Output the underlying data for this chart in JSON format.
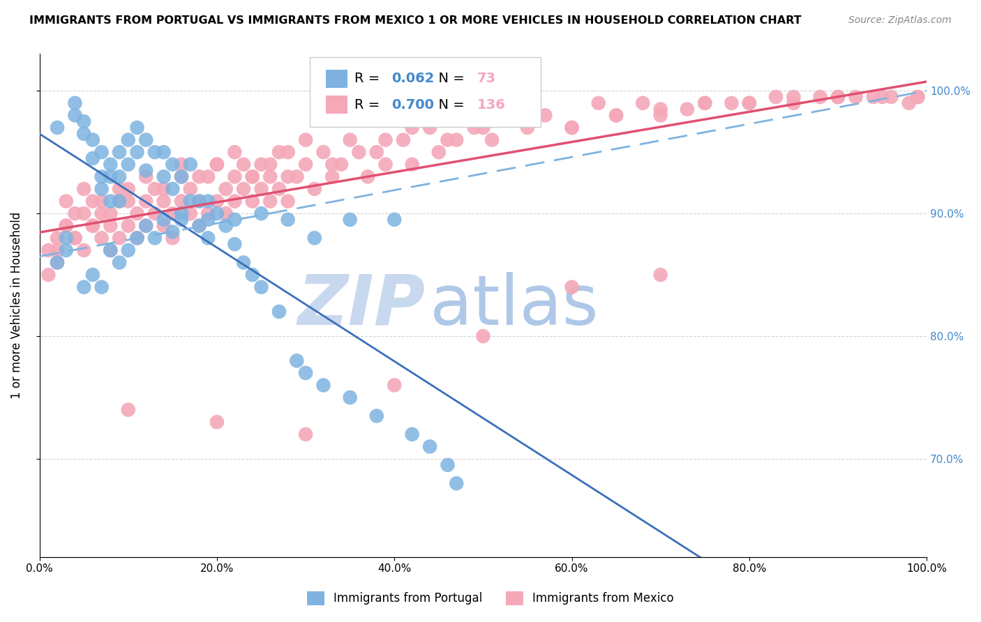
{
  "title": "IMMIGRANTS FROM PORTUGAL VS IMMIGRANTS FROM MEXICO 1 OR MORE VEHICLES IN HOUSEHOLD CORRELATION CHART",
  "source": "Source: ZipAtlas.com",
  "ylabel": "1 or more Vehicles in Household",
  "xlim": [
    0.0,
    1.0
  ],
  "ylim": [
    0.62,
    1.03
  ],
  "portugal_R": 0.062,
  "portugal_N": 73,
  "mexico_R": 0.7,
  "mexico_N": 136,
  "portugal_color": "#7eb3e0",
  "mexico_color": "#f4a8b8",
  "portugal_line_color": "#3a6fba",
  "mexico_line_color": "#e05070",
  "dashed_line_color": "#7eb3e0",
  "legend_label_portugal": "Immigrants from Portugal",
  "legend_label_mexico": "Immigrants from Mexico",
  "watermark_zip": "ZIP",
  "watermark_atlas": "atlas",
  "watermark_color": "#c8d8ee",
  "background_color": "#ffffff",
  "portugal_x": [
    0.02,
    0.04,
    0.04,
    0.05,
    0.05,
    0.06,
    0.06,
    0.07,
    0.07,
    0.07,
    0.08,
    0.08,
    0.08,
    0.09,
    0.09,
    0.09,
    0.1,
    0.1,
    0.11,
    0.11,
    0.12,
    0.12,
    0.13,
    0.14,
    0.14,
    0.15,
    0.15,
    0.16,
    0.16,
    0.17,
    0.17,
    0.18,
    0.18,
    0.19,
    0.19,
    0.2,
    0.21,
    0.22,
    0.23,
    0.24,
    0.25,
    0.27,
    0.29,
    0.3,
    0.32,
    0.35,
    0.38,
    0.42,
    0.44,
    0.46,
    0.47,
    0.02,
    0.03,
    0.03,
    0.05,
    0.06,
    0.07,
    0.08,
    0.09,
    0.1,
    0.11,
    0.12,
    0.13,
    0.14,
    0.15,
    0.16,
    0.19,
    0.22,
    0.25,
    0.28,
    0.31,
    0.35,
    0.4
  ],
  "portugal_y": [
    0.97,
    0.98,
    0.99,
    0.965,
    0.975,
    0.945,
    0.96,
    0.92,
    0.93,
    0.95,
    0.91,
    0.93,
    0.94,
    0.91,
    0.93,
    0.95,
    0.94,
    0.96,
    0.95,
    0.97,
    0.935,
    0.96,
    0.95,
    0.93,
    0.95,
    0.92,
    0.94,
    0.9,
    0.93,
    0.91,
    0.94,
    0.89,
    0.91,
    0.88,
    0.91,
    0.9,
    0.89,
    0.875,
    0.86,
    0.85,
    0.84,
    0.82,
    0.78,
    0.77,
    0.76,
    0.75,
    0.735,
    0.72,
    0.71,
    0.695,
    0.68,
    0.86,
    0.87,
    0.88,
    0.84,
    0.85,
    0.84,
    0.87,
    0.86,
    0.87,
    0.88,
    0.89,
    0.88,
    0.895,
    0.885,
    0.895,
    0.895,
    0.895,
    0.9,
    0.895,
    0.88,
    0.895,
    0.895
  ],
  "mexico_x": [
    0.01,
    0.02,
    0.02,
    0.03,
    0.03,
    0.04,
    0.04,
    0.05,
    0.05,
    0.06,
    0.06,
    0.07,
    0.07,
    0.08,
    0.08,
    0.09,
    0.09,
    0.1,
    0.1,
    0.11,
    0.11,
    0.12,
    0.12,
    0.13,
    0.13,
    0.14,
    0.14,
    0.15,
    0.15,
    0.16,
    0.16,
    0.17,
    0.17,
    0.18,
    0.18,
    0.19,
    0.19,
    0.2,
    0.2,
    0.21,
    0.21,
    0.22,
    0.22,
    0.23,
    0.23,
    0.24,
    0.24,
    0.25,
    0.25,
    0.26,
    0.26,
    0.27,
    0.27,
    0.28,
    0.28,
    0.29,
    0.3,
    0.31,
    0.32,
    0.33,
    0.34,
    0.35,
    0.37,
    0.38,
    0.39,
    0.41,
    0.42,
    0.44,
    0.45,
    0.47,
    0.49,
    0.51,
    0.53,
    0.55,
    0.57,
    0.6,
    0.63,
    0.65,
    0.68,
    0.7,
    0.73,
    0.75,
    0.78,
    0.8,
    0.83,
    0.85,
    0.88,
    0.9,
    0.92,
    0.94,
    0.96,
    0.98,
    0.99,
    0.01,
    0.02,
    0.03,
    0.04,
    0.05,
    0.06,
    0.07,
    0.08,
    0.09,
    0.1,
    0.12,
    0.14,
    0.16,
    0.18,
    0.2,
    0.22,
    0.24,
    0.26,
    0.28,
    0.3,
    0.33,
    0.36,
    0.39,
    0.42,
    0.46,
    0.5,
    0.55,
    0.6,
    0.65,
    0.7,
    0.75,
    0.8,
    0.85,
    0.9,
    0.95,
    0.99,
    0.1,
    0.2,
    0.3,
    0.4,
    0.5,
    0.6,
    0.7
  ],
  "mexico_y": [
    0.87,
    0.88,
    0.86,
    0.89,
    0.91,
    0.88,
    0.9,
    0.87,
    0.92,
    0.89,
    0.91,
    0.88,
    0.9,
    0.87,
    0.89,
    0.88,
    0.91,
    0.89,
    0.92,
    0.9,
    0.88,
    0.91,
    0.89,
    0.92,
    0.9,
    0.89,
    0.91,
    0.88,
    0.9,
    0.91,
    0.93,
    0.9,
    0.92,
    0.89,
    0.91,
    0.9,
    0.93,
    0.91,
    0.94,
    0.92,
    0.9,
    0.93,
    0.91,
    0.92,
    0.94,
    0.91,
    0.93,
    0.92,
    0.94,
    0.91,
    0.93,
    0.92,
    0.95,
    0.93,
    0.91,
    0.93,
    0.94,
    0.92,
    0.95,
    0.93,
    0.94,
    0.96,
    0.93,
    0.95,
    0.94,
    0.96,
    0.94,
    0.97,
    0.95,
    0.96,
    0.97,
    0.96,
    0.98,
    0.97,
    0.98,
    0.97,
    0.99,
    0.98,
    0.99,
    0.98,
    0.985,
    0.99,
    0.99,
    0.99,
    0.995,
    0.995,
    0.995,
    0.995,
    0.995,
    0.995,
    0.995,
    0.99,
    0.995,
    0.85,
    0.87,
    0.89,
    0.88,
    0.9,
    0.89,
    0.91,
    0.9,
    0.92,
    0.91,
    0.93,
    0.92,
    0.94,
    0.93,
    0.94,
    0.95,
    0.93,
    0.94,
    0.95,
    0.96,
    0.94,
    0.95,
    0.96,
    0.97,
    0.96,
    0.97,
    0.98,
    0.97,
    0.98,
    0.985,
    0.99,
    0.99,
    0.99,
    0.995,
    0.995,
    0.995,
    0.74,
    0.73,
    0.72,
    0.76,
    0.8,
    0.84,
    0.85
  ]
}
